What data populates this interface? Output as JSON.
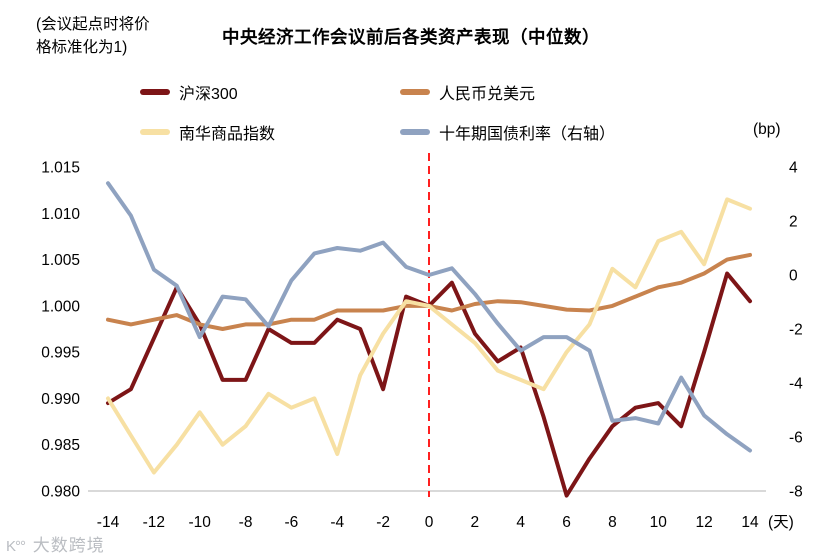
{
  "header": {
    "note_line1": "(会议起点时将价",
    "note_line2": "格标准化为1)",
    "title": "中央经济工作会议前后各类资产表现（中位数）"
  },
  "legend": [
    {
      "label": "沪深300",
      "color": "#7d1517"
    },
    {
      "label": "人民币兑美元",
      "color": "#c8834e"
    },
    {
      "label": "南华商品指数",
      "color": "#f7e0a3"
    },
    {
      "label": "十年期国债利率（右轴）",
      "color": "#8fa2c0"
    }
  ],
  "axes": {
    "left_ticks": [
      1.015,
      1.01,
      1.005,
      1.0,
      0.995,
      0.99,
      0.985,
      0.98
    ],
    "right_ticks": [
      4,
      2,
      0,
      -2,
      -4,
      -6,
      -8
    ],
    "x_ticks": [
      -14,
      -12,
      -10,
      -8,
      -6,
      -4,
      -2,
      0,
      2,
      4,
      6,
      8,
      10,
      12,
      14
    ],
    "right_unit": "(bp)",
    "x_unit": "(天)",
    "axis_line_color": "#d9d9d9",
    "event_line_color": "#ff2020"
  },
  "watermark": {
    "logo": "K°°",
    "text": "大数跨境"
  },
  "chart_data": {
    "type": "line",
    "title": "中央经济工作会议前后各类资产表现（中位数）",
    "x_label_unit": "天",
    "x": [
      -14,
      -13,
      -12,
      -11,
      -10,
      -9,
      -8,
      -7,
      -6,
      -5,
      -4,
      -3,
      -2,
      -1,
      0,
      1,
      2,
      3,
      4,
      5,
      6,
      7,
      8,
      9,
      10,
      11,
      12,
      13,
      14
    ],
    "left_axis_range": [
      0.98,
      1.015
    ],
    "right_axis_range": [
      -8,
      4
    ],
    "right_axis_unit": "bp",
    "event_line_x": 0,
    "grid": false,
    "legend_position": "top",
    "series": [
      {
        "name": "沪深300",
        "axis": "left",
        "color": "#7d1517",
        "values": [
          0.9895,
          0.991,
          0.9965,
          1.002,
          0.998,
          0.992,
          0.992,
          0.9975,
          0.996,
          0.996,
          0.9985,
          0.9975,
          0.991,
          1.001,
          1.0,
          1.0025,
          0.997,
          0.994,
          0.9955,
          0.988,
          0.9795,
          0.9835,
          0.987,
          0.989,
          0.9895,
          0.987,
          0.995,
          1.0035,
          1.0005
        ]
      },
      {
        "name": "人民币兑美元",
        "axis": "left",
        "color": "#c8834e",
        "values": [
          0.9985,
          0.998,
          0.9985,
          0.999,
          0.998,
          0.9975,
          0.998,
          0.998,
          0.9985,
          0.9985,
          0.9995,
          0.9995,
          0.9995,
          1.0,
          1.0,
          0.9995,
          1.0002,
          1.0005,
          1.0004,
          1.0,
          0.9996,
          0.9995,
          1.0,
          1.001,
          1.002,
          1.0025,
          1.0035,
          1.005,
          1.0055
        ]
      },
      {
        "name": "南华商品指数",
        "axis": "left",
        "color": "#f7e0a3",
        "values": [
          0.99,
          0.986,
          0.982,
          0.985,
          0.9885,
          0.985,
          0.987,
          0.9905,
          0.989,
          0.99,
          0.984,
          0.9925,
          0.997,
          1.0005,
          1.0,
          0.998,
          0.996,
          0.993,
          0.992,
          0.991,
          0.995,
          0.998,
          1.004,
          1.002,
          1.007,
          1.008,
          1.0045,
          1.0115,
          1.0105
        ]
      },
      {
        "name": "十年期国债利率（右轴）",
        "axis": "right",
        "color": "#8fa2c0",
        "values": [
          3.4,
          2.2,
          0.2,
          -0.4,
          -2.3,
          -0.8,
          -0.9,
          -1.9,
          -0.2,
          0.8,
          1.0,
          0.9,
          1.2,
          0.3,
          0.0,
          0.25,
          -0.7,
          -1.8,
          -2.8,
          -2.3,
          -2.3,
          -2.8,
          -5.4,
          -5.3,
          -5.5,
          -3.8,
          -5.2,
          -5.9,
          -6.5
        ]
      }
    ]
  }
}
